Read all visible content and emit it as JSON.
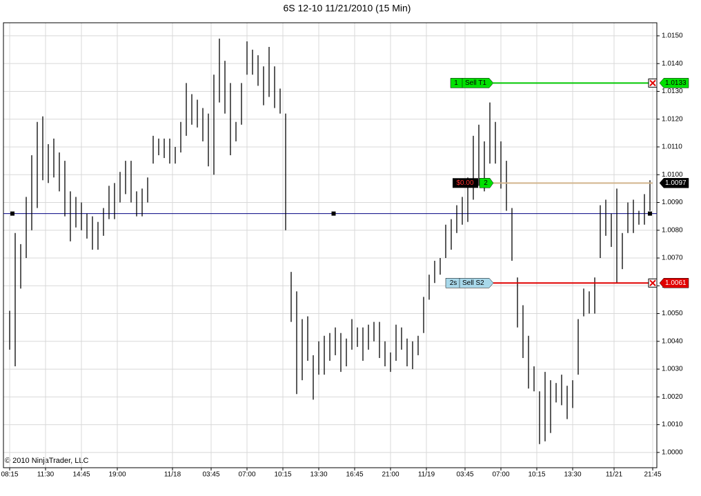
{
  "chart_data": {
    "type": "range_bar",
    "title": "6S 12-10  11/21/2010 (15 Min)",
    "copyright": "© 2010 NinjaTrader, LLC",
    "bar_color": "#000000",
    "grid": true,
    "xlim": [
      -2.25,
      234.5
    ],
    "xticks": [
      {
        "value": 0,
        "label": "08:15"
      },
      {
        "value": 13,
        "label": "11:30"
      },
      {
        "value": 26,
        "label": "14:45"
      },
      {
        "value": 39,
        "label": "19:00"
      },
      {
        "value": 59,
        "label": "11/18"
      },
      {
        "value": 73,
        "label": "03:45"
      },
      {
        "value": 86,
        "label": "07:00"
      },
      {
        "value": 99,
        "label": "10:15"
      },
      {
        "value": 112,
        "label": "13:30"
      },
      {
        "value": 125,
        "label": "16:45"
      },
      {
        "value": 138,
        "label": "21:00"
      },
      {
        "value": 151,
        "label": "11/19"
      },
      {
        "value": 165,
        "label": "03:45"
      },
      {
        "value": 178,
        "label": "07:00"
      },
      {
        "value": 191,
        "label": "10:15"
      },
      {
        "value": 204,
        "label": "13:30"
      },
      {
        "value": 219,
        "label": "11/21"
      },
      {
        "value": 233,
        "label": "21:45"
      }
    ],
    "ylim": [
      0.99945,
      1.01547
    ],
    "yticks": [
      {
        "value": 1.0,
        "label": "1.0000"
      },
      {
        "value": 1.001,
        "label": "1.0010"
      },
      {
        "value": 1.002,
        "label": "1.0020"
      },
      {
        "value": 1.003,
        "label": "1.0030"
      },
      {
        "value": 1.004,
        "label": "1.0040"
      },
      {
        "value": 1.005,
        "label": "1.0050"
      },
      {
        "value": 1.006,
        "label": "1.0060"
      },
      {
        "value": 1.007,
        "label": "1.0070"
      },
      {
        "value": 1.008,
        "label": "1.0080"
      },
      {
        "value": 1.009,
        "label": "1.0090"
      },
      {
        "value": 1.01,
        "label": "1.0100"
      },
      {
        "value": 1.011,
        "label": "1.0110"
      },
      {
        "value": 1.012,
        "label": "1.0120"
      },
      {
        "value": 1.013,
        "label": "1.0130"
      },
      {
        "value": 1.014,
        "label": "1.0140"
      },
      {
        "value": 1.015,
        "label": "1.0150"
      }
    ],
    "x": [
      0,
      2,
      4,
      6,
      8,
      10,
      12,
      14,
      16,
      18,
      20,
      22,
      24,
      26,
      28,
      30,
      32,
      34,
      36,
      38,
      40,
      42,
      44,
      46,
      48,
      50,
      52,
      54,
      56,
      58,
      60,
      62,
      64,
      66,
      68,
      70,
      72,
      74,
      76,
      78,
      80,
      82,
      84,
      86,
      88,
      90,
      92,
      94,
      96,
      98,
      100,
      102,
      104,
      106,
      108,
      110,
      112,
      114,
      116,
      118,
      120,
      122,
      124,
      126,
      128,
      130,
      132,
      134,
      136,
      138,
      140,
      142,
      144,
      146,
      148,
      150,
      152,
      154,
      156,
      158,
      160,
      162,
      164,
      166,
      168,
      170,
      172,
      174,
      176,
      178,
      180,
      182,
      184,
      186,
      188,
      190,
      192,
      194,
      196,
      198,
      200,
      202,
      204,
      206,
      208,
      210,
      212,
      214,
      216,
      218,
      220,
      222,
      224,
      226,
      228,
      230,
      232
    ],
    "high": [
      1.0051,
      1.0079,
      1.0075,
      1.0092,
      1.0107,
      1.0119,
      1.0121,
      1.0111,
      1.0113,
      1.0108,
      1.0105,
      1.0094,
      1.0092,
      1.009,
      1.0086,
      1.0085,
      1.0083,
      1.0088,
      1.0096,
      1.0097,
      1.0101,
      1.0105,
      1.0105,
      1.0094,
      1.0095,
      1.0099,
      1.0114,
      1.0113,
      1.0113,
      1.0113,
      1.011,
      1.0119,
      1.0133,
      1.0129,
      1.0127,
      1.0124,
      1.0122,
      1.0136,
      1.0149,
      1.0141,
      1.0133,
      1.0119,
      1.0133,
      1.0148,
      1.0145,
      1.0143,
      1.0139,
      1.0146,
      1.0139,
      1.0131,
      1.0122,
      1.0065,
      1.0058,
      1.0048,
      1.0049,
      1.0035,
      1.004,
      1.0042,
      1.0043,
      1.0045,
      1.0043,
      1.0041,
      1.0048,
      1.0045,
      1.0045,
      1.0046,
      1.0047,
      1.0047,
      1.004,
      1.0036,
      1.0046,
      1.0045,
      1.0041,
      1.004,
      1.0042,
      1.0056,
      1.0064,
      1.0069,
      1.007,
      1.0082,
      1.0084,
      1.0089,
      1.0092,
      1.0099,
      1.0114,
      1.0118,
      1.0112,
      1.0126,
      1.0119,
      1.0112,
      1.0105,
      1.0088,
      1.0063,
      1.0053,
      1.0042,
      1.0031,
      1.0022,
      1.0029,
      1.0026,
      1.0025,
      1.0028,
      1.0024,
      1.0026,
      1.0048,
      1.0059,
      1.0058,
      1.0063,
      1.0089,
      1.0091,
      1.0086,
      1.0095,
      1.0079,
      1.009,
      1.0091,
      1.0087,
      1.0093,
      1.0098
    ],
    "low": [
      1.0037,
      1.0031,
      1.0059,
      1.007,
      1.008,
      1.0088,
      1.0098,
      1.0097,
      1.0099,
      1.0094,
      1.0085,
      1.0076,
      1.0081,
      1.008,
      1.0077,
      1.0073,
      1.0073,
      1.0078,
      1.0084,
      1.0084,
      1.009,
      1.0093,
      1.009,
      1.0085,
      1.0085,
      1.009,
      1.0104,
      1.0107,
      1.0106,
      1.0104,
      1.0104,
      1.0108,
      1.0114,
      1.0118,
      1.0117,
      1.0112,
      1.0103,
      1.01,
      1.0126,
      1.0122,
      1.0107,
      1.0112,
      1.0118,
      1.0136,
      1.0136,
      1.0132,
      1.0125,
      1.0128,
      1.0124,
      1.0122,
      1.008,
      1.0047,
      1.0021,
      1.0026,
      1.0033,
      1.0019,
      1.0028,
      1.0028,
      1.0033,
      1.0035,
      1.0029,
      1.0031,
      1.0037,
      1.0038,
      1.0033,
      1.0037,
      1.004,
      1.0034,
      1.0031,
      1.0029,
      1.0033,
      1.0037,
      1.0031,
      1.003,
      1.0035,
      1.0043,
      1.0055,
      1.0061,
      1.0064,
      1.007,
      1.0073,
      1.0079,
      1.0082,
      1.0083,
      1.0091,
      1.0096,
      1.0094,
      1.0104,
      1.0104,
      1.0095,
      1.0087,
      1.0069,
      1.0045,
      1.0034,
      1.0023,
      1.0022,
      1.0003,
      1.0004,
      1.0007,
      1.0018,
      1.0017,
      1.0012,
      1.0016,
      1.0028,
      1.0049,
      1.005,
      1.005,
      1.007,
      1.0078,
      1.0074,
      1.0061,
      1.0066,
      1.0079,
      1.0079,
      1.0082,
      1.0082,
      1.0087
    ],
    "hline": {
      "value": 1.0086,
      "color": "#000080"
    },
    "orders": [
      {
        "qty": "1",
        "name": "Sell T1",
        "value": 1.0133,
        "color": "#00c800",
        "box_color": "#00e000",
        "tag_fill": "#00e000",
        "tag_text": "#000000"
      },
      {
        "qty": "2",
        "pnl": "$0.00",
        "value": 1.0097,
        "color": "#d2b48c",
        "box_color": "#00e000",
        "tag_fill": "#000000",
        "tag_text": "#ffffff"
      },
      {
        "qty": "2s",
        "name": "Sell S2",
        "value": 1.0061,
        "color": "#e00000",
        "box_color": "#a8d8ea",
        "tag_fill": "#e00000",
        "tag_text": "#ffffff"
      }
    ]
  }
}
